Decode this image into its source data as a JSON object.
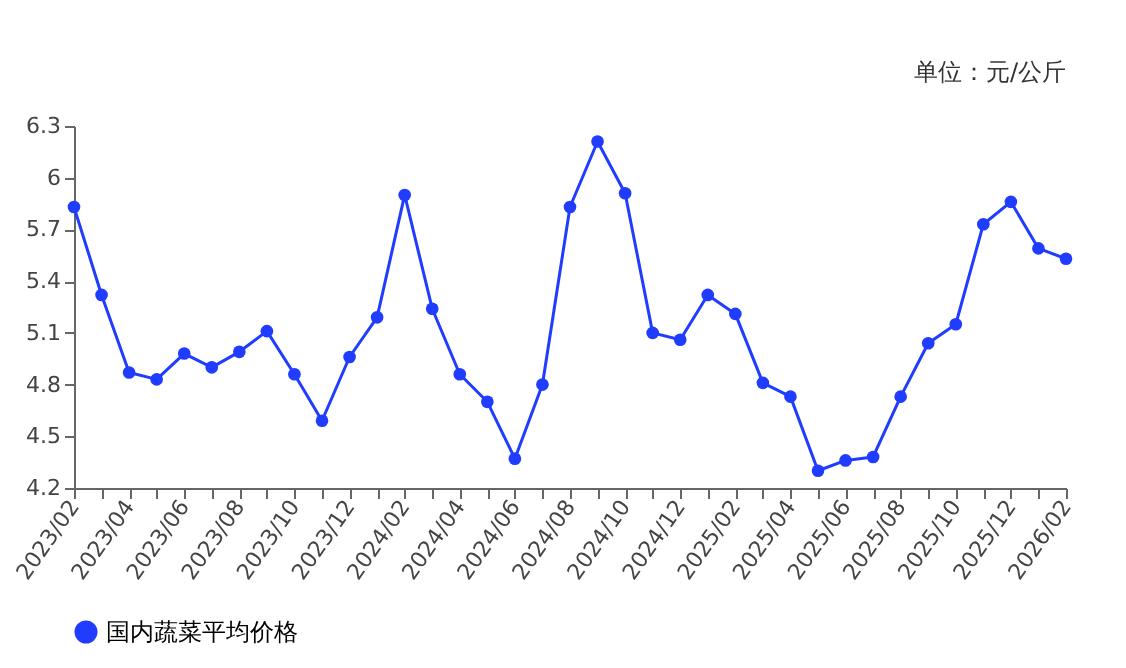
{
  "chart_data": {
    "type": "line",
    "categories": [
      "2023/02",
      null,
      "2023/04",
      null,
      "2023/06",
      null,
      "2023/08",
      null,
      "2023/10",
      null,
      "2023/12",
      null,
      "2024/02",
      null,
      "2024/04",
      null,
      "2024/06",
      null,
      "2024/08",
      null,
      "2024/10",
      null,
      "2024/12",
      null,
      "2025/02",
      null,
      "2025/04",
      null,
      "2025/06",
      null,
      "2025/08",
      null,
      "2025/10",
      null,
      "2025/12",
      null,
      "2026/02"
    ],
    "series": [
      {
        "name": "国内蔬菜平均价格",
        "color": "#1f3cff",
        "values": [
          5.83,
          5.32,
          4.87,
          4.83,
          4.98,
          4.9,
          4.99,
          5.11,
          4.86,
          4.59,
          4.96,
          5.19,
          5.9,
          5.24,
          4.86,
          4.7,
          4.37,
          4.8,
          5.83,
          6.21,
          5.91,
          5.1,
          5.06,
          5.32,
          5.21,
          4.81,
          4.73,
          4.3,
          4.36,
          4.38,
          4.73,
          5.04,
          5.15,
          5.73,
          5.86,
          5.59,
          5.53
        ]
      }
    ],
    "ylim": [
      4.2,
      6.3
    ],
    "yticks": [
      4.2,
      4.5,
      4.8,
      5.1,
      5.4,
      5.7,
      6,
      6.3
    ],
    "annotations": [
      "单位：元/公斤"
    ],
    "grid": false,
    "legend": "bottom",
    "marker": "circle",
    "line_style": "solid"
  }
}
